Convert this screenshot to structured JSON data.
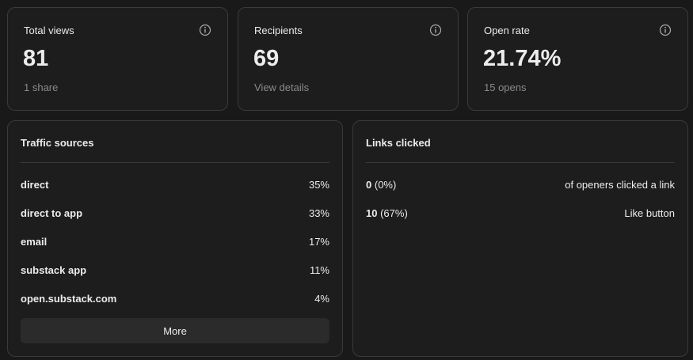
{
  "stats": [
    {
      "label": "Total views",
      "value": "81",
      "sub": "1 share"
    },
    {
      "label": "Recipients",
      "value": "69",
      "sub": "View details"
    },
    {
      "label": "Open rate",
      "value": "21.74%",
      "sub": "15 opens"
    }
  ],
  "traffic": {
    "title": "Traffic sources",
    "rows": [
      {
        "name": "direct",
        "share": "35%"
      },
      {
        "name": "direct to app",
        "share": "33%"
      },
      {
        "name": "email",
        "share": "17%"
      },
      {
        "name": "substack app",
        "share": "11%"
      },
      {
        "name": "open.substack.com",
        "share": "4%"
      }
    ],
    "button": "More"
  },
  "links": {
    "title": "Links clicked",
    "rows": [
      {
        "count": "0",
        "pct": "(0%)",
        "label": "of openers clicked a link"
      },
      {
        "count": "10",
        "pct": "(67%)",
        "label": "Like button"
      }
    ]
  }
}
